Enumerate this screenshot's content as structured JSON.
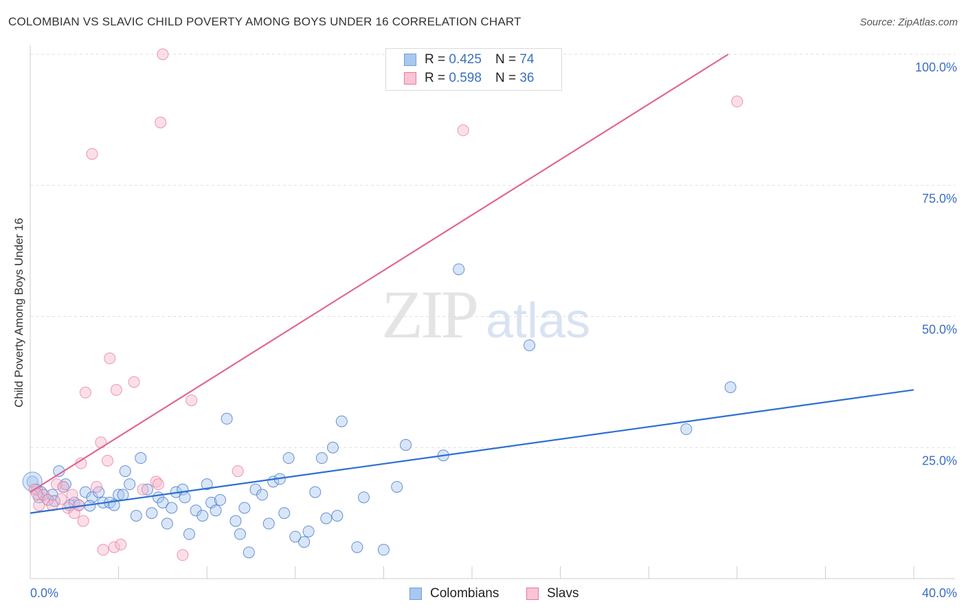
{
  "title": "COLOMBIAN VS SLAVIC CHILD POVERTY AMONG BOYS UNDER 16 CORRELATION CHART",
  "source": "Source: ZipAtlas.com",
  "watermark": {
    "zip": "ZIP",
    "atlas": "atlas"
  },
  "colors": {
    "blue": "#3a6fc4",
    "blue_fill": "#a9c8ef",
    "blue_line": "#2b6fd1",
    "pink": "#e8769c",
    "pink_fill": "#f6b9cc",
    "pink_line": "#e06692",
    "grid": "#dddddd",
    "tick_text": "#3a6fc4"
  },
  "stats": [
    {
      "r_label": "R =",
      "r_value": "0.425",
      "n_label": "N =",
      "n_value": "74",
      "color": "#a9c8ef",
      "border": "#6f9fdc"
    },
    {
      "r_label": "R =",
      "r_value": "0.598",
      "n_label": "N =",
      "n_value": "36",
      "color": "#f9c4d4",
      "border": "#e8769c"
    }
  ],
  "legend": [
    {
      "label": "Colombians",
      "color": "#a9c8ef",
      "border": "#6f9fdc"
    },
    {
      "label": "Slavs",
      "color": "#f9c4d4",
      "border": "#e8769c"
    }
  ],
  "chart_data": {
    "type": "scatter",
    "title": "COLOMBIAN VS SLAVIC CHILD POVERTY AMONG BOYS UNDER 16 CORRELATION CHART",
    "xlabel": "",
    "ylabel": "Child Poverty Among Boys Under 16",
    "xlim": [
      0,
      40
    ],
    "ylim": [
      0,
      100
    ],
    "x_tick_labels": [
      {
        "value": 0,
        "label": "0.0%"
      },
      {
        "value": 40,
        "label": "40.0%"
      }
    ],
    "y_tick_labels": [
      {
        "value": 25,
        "label": "25.0%"
      },
      {
        "value": 50,
        "label": "50.0%"
      },
      {
        "value": 75,
        "label": "75.0%"
      },
      {
        "value": 100,
        "label": "100.0%"
      }
    ],
    "series": [
      {
        "name": "Colombians",
        "r": 0.425,
        "n": 74,
        "trend": {
          "x": [
            0,
            40
          ],
          "y": [
            12.5,
            36
          ]
        },
        "points": [
          [
            0.1,
            18.5
          ],
          [
            0.3,
            17
          ],
          [
            0.5,
            16.5
          ],
          [
            0.6,
            16
          ],
          [
            0.8,
            15
          ],
          [
            1.0,
            16
          ],
          [
            1.3,
            20.5
          ],
          [
            1.5,
            17.5
          ],
          [
            1.6,
            18
          ],
          [
            1.8,
            14
          ],
          [
            2.0,
            14.5
          ],
          [
            2.2,
            14
          ],
          [
            2.5,
            16.5
          ],
          [
            2.8,
            15.5
          ],
          [
            3.1,
            16.5
          ],
          [
            3.3,
            14.5
          ],
          [
            3.6,
            14.5
          ],
          [
            3.8,
            14
          ],
          [
            4.0,
            16
          ],
          [
            4.2,
            16
          ],
          [
            4.3,
            20.5
          ],
          [
            4.5,
            18
          ],
          [
            4.8,
            12
          ],
          [
            5.0,
            23
          ],
          [
            5.3,
            17
          ],
          [
            5.5,
            12.5
          ],
          [
            5.8,
            15.5
          ],
          [
            6.0,
            14.5
          ],
          [
            6.2,
            10.5
          ],
          [
            6.4,
            13.5
          ],
          [
            6.6,
            16.5
          ],
          [
            6.9,
            17
          ],
          [
            7.0,
            15.5
          ],
          [
            7.2,
            8.5
          ],
          [
            7.5,
            13
          ],
          [
            7.8,
            12
          ],
          [
            8.0,
            18
          ],
          [
            8.2,
            14.5
          ],
          [
            8.4,
            13
          ],
          [
            8.6,
            15
          ],
          [
            8.9,
            30.5
          ],
          [
            9.3,
            11
          ],
          [
            9.5,
            8.5
          ],
          [
            9.7,
            13.5
          ],
          [
            9.9,
            5
          ],
          [
            10.2,
            17
          ],
          [
            10.5,
            16
          ],
          [
            10.8,
            10.5
          ],
          [
            11.0,
            18.5
          ],
          [
            11.3,
            19
          ],
          [
            11.5,
            12.5
          ],
          [
            11.7,
            23
          ],
          [
            12.0,
            8
          ],
          [
            12.4,
            7
          ],
          [
            12.6,
            9
          ],
          [
            12.9,
            16.5
          ],
          [
            13.2,
            23
          ],
          [
            13.4,
            11.5
          ],
          [
            13.7,
            25
          ],
          [
            13.9,
            12
          ],
          [
            14.1,
            30
          ],
          [
            14.8,
            6
          ],
          [
            15.1,
            15.5
          ],
          [
            16.0,
            5.5
          ],
          [
            16.6,
            17.5
          ],
          [
            17.0,
            25.5
          ],
          [
            18.7,
            23.5
          ],
          [
            19.4,
            59
          ],
          [
            22.6,
            44.5
          ],
          [
            29.7,
            28.5
          ],
          [
            31.7,
            36.5
          ],
          [
            0.4,
            15.5
          ],
          [
            1.1,
            14.8
          ],
          [
            2.7,
            13.9
          ]
        ]
      },
      {
        "name": "Slavs",
        "r": 0.598,
        "n": 36,
        "trend": {
          "x": [
            0,
            31.6
          ],
          "y": [
            16.5,
            100
          ]
        },
        "points": [
          [
            0.2,
            17
          ],
          [
            0.4,
            14
          ],
          [
            0.6,
            16
          ],
          [
            0.8,
            15
          ],
          [
            1.0,
            14
          ],
          [
            1.2,
            18
          ],
          [
            1.5,
            17.5
          ],
          [
            1.7,
            13.5
          ],
          [
            1.9,
            16
          ],
          [
            2.0,
            12.5
          ],
          [
            2.2,
            14
          ],
          [
            2.3,
            22
          ],
          [
            2.4,
            11
          ],
          [
            2.5,
            35.5
          ],
          [
            2.8,
            81
          ],
          [
            3.0,
            17.5
          ],
          [
            3.2,
            26
          ],
          [
            3.3,
            5.5
          ],
          [
            3.5,
            22.5
          ],
          [
            3.6,
            42
          ],
          [
            3.8,
            6
          ],
          [
            3.9,
            36
          ],
          [
            4.1,
            6.5
          ],
          [
            4.7,
            37.5
          ],
          [
            5.1,
            17
          ],
          [
            5.7,
            18.5
          ],
          [
            5.8,
            18
          ],
          [
            5.9,
            87
          ],
          [
            6.0,
            100
          ],
          [
            6.9,
            4.5
          ],
          [
            7.3,
            34
          ],
          [
            9.4,
            20.5
          ],
          [
            19.6,
            85.5
          ],
          [
            32.0,
            91
          ],
          [
            0.3,
            16.2
          ],
          [
            1.4,
            15.2
          ]
        ]
      }
    ]
  }
}
